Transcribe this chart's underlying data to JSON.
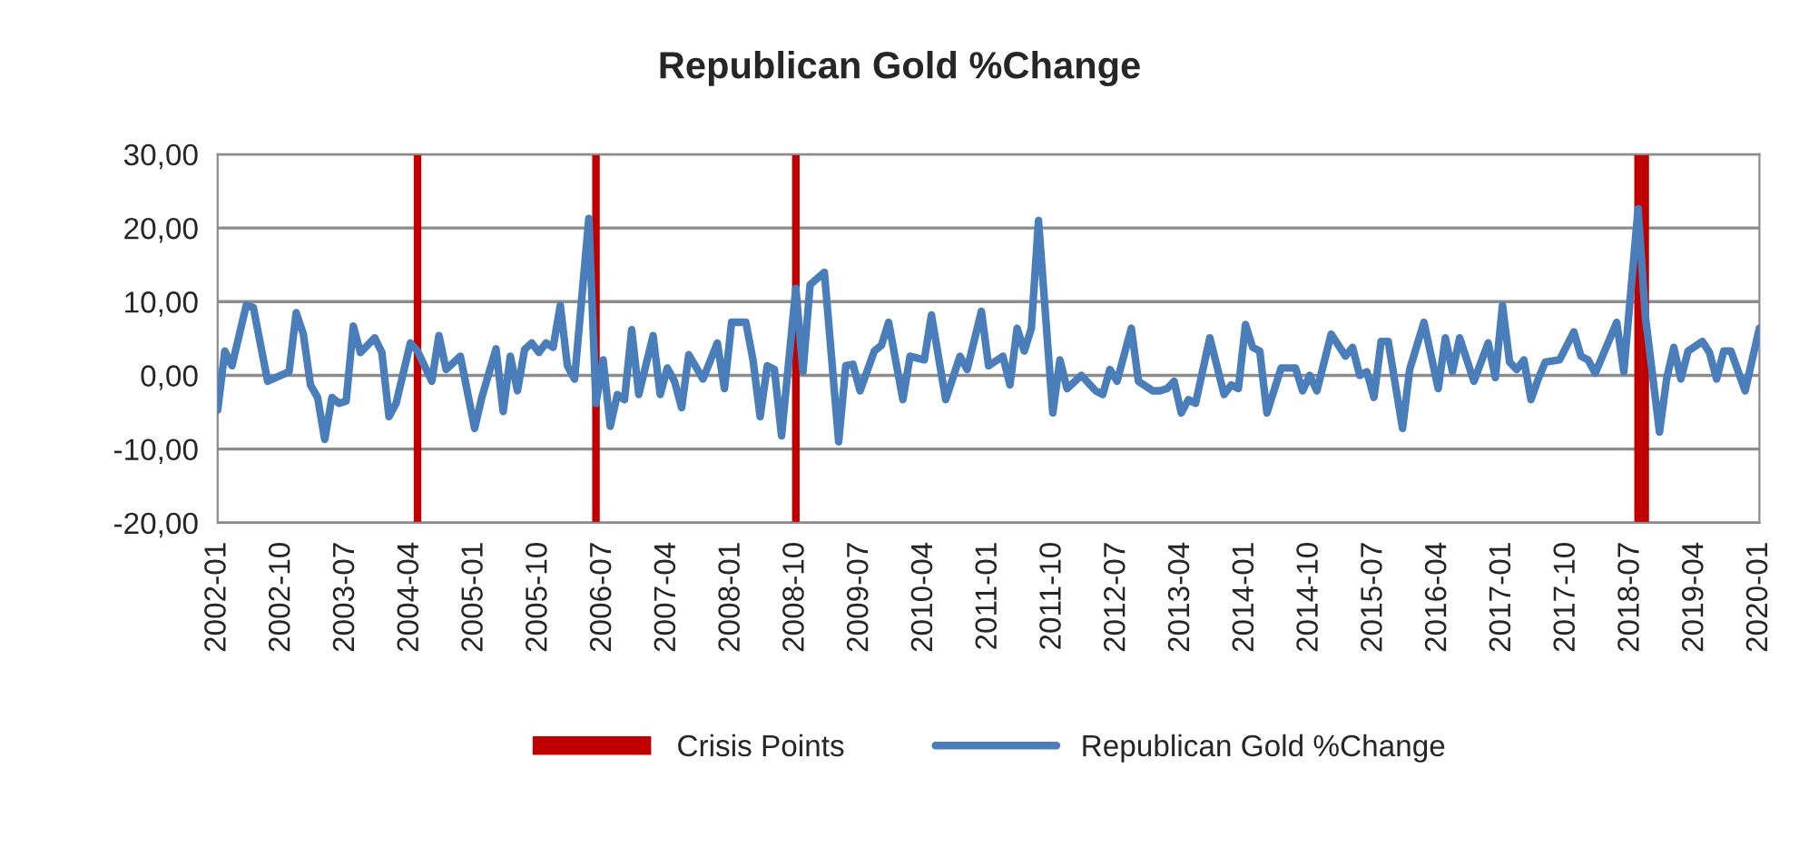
{
  "chart_data": {
    "type": "line",
    "title": "Republican Gold %Change",
    "x": [
      "2002-01",
      "2002-02",
      "2002-03",
      "2002-05",
      "2002-06",
      "2002-08",
      "2002-11",
      "2002-12",
      "2003-01",
      "2003-02",
      "2003-03",
      "2003-04",
      "2003-05",
      "2003-06",
      "2003-07",
      "2003-08",
      "2003-09",
      "2003-11",
      "2003-12",
      "2004-01",
      "2004-02",
      "2004-04",
      "2004-05",
      "2004-07",
      "2004-08",
      "2004-09",
      "2004-11",
      "2005-01",
      "2005-02",
      "2005-04",
      "2005-05",
      "2005-06",
      "2005-07",
      "2005-08",
      "2005-09",
      "2005-10",
      "2005-11",
      "2005-12",
      "2006-01",
      "2006-02",
      "2006-03",
      "2006-05",
      "2006-06",
      "2006-07",
      "2006-08",
      "2006-09",
      "2006-10",
      "2006-11",
      "2006-12",
      "2007-02",
      "2007-03",
      "2007-04",
      "2007-05",
      "2007-06",
      "2007-07",
      "2007-09",
      "2007-11",
      "2007-12",
      "2008-01",
      "2008-03",
      "2008-04",
      "2008-05",
      "2008-06",
      "2008-07",
      "2008-08",
      "2008-10",
      "2008-11",
      "2008-12",
      "2009-02",
      "2009-04",
      "2009-05",
      "2009-06",
      "2009-07",
      "2009-09",
      "2009-10",
      "2009-11",
      "2010-01",
      "2010-02",
      "2010-04",
      "2010-05",
      "2010-07",
      "2010-09",
      "2010-10",
      "2010-12",
      "2011-01",
      "2011-03",
      "2011-04",
      "2011-05",
      "2011-06",
      "2011-07",
      "2011-08",
      "2011-10",
      "2011-11",
      "2011-12",
      "2012-02",
      "2012-04",
      "2012-05",
      "2012-06",
      "2012-07",
      "2012-09",
      "2012-10",
      "2012-12",
      "2013-01",
      "2013-02",
      "2013-03",
      "2013-04",
      "2013-05",
      "2013-06",
      "2013-08",
      "2013-10",
      "2013-11",
      "2013-12",
      "2014-01",
      "2014-02",
      "2014-03",
      "2014-04",
      "2014-06",
      "2014-08",
      "2014-09",
      "2014-10",
      "2014-11",
      "2015-01",
      "2015-03",
      "2015-04",
      "2015-05",
      "2015-06",
      "2015-07",
      "2015-08",
      "2015-09",
      "2015-11",
      "2015-12",
      "2016-02",
      "2016-04",
      "2016-05",
      "2016-06",
      "2016-07",
      "2016-09",
      "2016-11",
      "2016-12",
      "2017-01",
      "2017-02",
      "2017-03",
      "2017-04",
      "2017-05",
      "2017-06",
      "2017-07",
      "2017-09",
      "2017-11",
      "2017-12",
      "2018-01",
      "2018-02",
      "2018-05",
      "2018-06",
      "2018-08",
      "2018-09",
      "2018-11",
      "2018-12",
      "2019-01",
      "2019-02",
      "2019-03",
      "2019-05",
      "2019-06",
      "2019-07",
      "2019-08",
      "2019-09",
      "2019-11",
      "2020-01"
    ],
    "series": [
      {
        "name": "Republican Gold %Change",
        "color": "#4a7ebb",
        "values": [
          -4.7,
          3.3,
          1.3,
          9.5,
          9.2,
          -0.8,
          0.5,
          8.5,
          5.6,
          -1.3,
          -3,
          -8.7,
          -3,
          -3.8,
          -3.5,
          6.7,
          3.1,
          5.1,
          3.1,
          -5.6,
          -3.8,
          4.4,
          3.3,
          -0.8,
          5.4,
          0.8,
          2.6,
          -7.2,
          -3,
          3.6,
          -4.9,
          2.6,
          -2.1,
          3.5,
          4.4,
          3.1,
          4.4,
          3.8,
          9.5,
          1.3,
          -0.5,
          21.3,
          -3.8,
          2.1,
          -6.9,
          -2.6,
          -3.3,
          6.2,
          -2.6,
          5.4,
          -2.6,
          1,
          -0.8,
          -4.4,
          2.8,
          -0.5,
          4.4,
          -1.8,
          7.2,
          7.2,
          2.1,
          -5.6,
          1.3,
          0.8,
          -8.2,
          11.8,
          0.5,
          12.3,
          14,
          -9,
          1.3,
          1.5,
          -2.1,
          3.3,
          4.1,
          7.2,
          -3.3,
          2.6,
          2.1,
          8.2,
          -3.3,
          2.6,
          0.8,
          8.7,
          1.3,
          2.6,
          -1.3,
          6.4,
          3.3,
          6.4,
          21,
          -5.1,
          2.1,
          -1.8,
          0,
          -2.1,
          -2.6,
          0.8,
          -0.8,
          6.4,
          -0.8,
          -2.1,
          -2.1,
          -1.8,
          -0.8,
          -5.1,
          -3.3,
          -3.8,
          5.1,
          -2.6,
          -1.3,
          -1.8,
          6.9,
          3.8,
          3.3,
          -5.1,
          1,
          1,
          -2.1,
          0,
          -2.1,
          5.6,
          2.6,
          3.8,
          0,
          0.5,
          -3,
          4.6,
          4.6,
          -7.2,
          0.8,
          7.2,
          -1.8,
          5.1,
          0.5,
          5.1,
          -0.8,
          4.4,
          -0.3,
          9.5,
          1.8,
          0.8,
          2.1,
          -3.3,
          -0.5,
          1.8,
          2.1,
          5.9,
          2.6,
          2.1,
          0.3,
          7.2,
          0.5,
          22.6,
          8.2,
          -7.7,
          -0.5,
          3.8,
          -0.5,
          3.3,
          4.6,
          3.1,
          -0.5,
          3.3,
          3.3,
          -2.1,
          6.4
        ]
      }
    ],
    "ref_lines": [
      {
        "axis": "x",
        "value": "2004-05",
        "label": "Crisis Points",
        "color": "#c00000"
      },
      {
        "axis": "x",
        "value": "2006-06",
        "color": "#c00000"
      },
      {
        "axis": "x",
        "value": "2008-10",
        "color": "#c00000"
      },
      {
        "axis": "x",
        "value": "2018-08",
        "color": "#c00000"
      },
      {
        "axis": "x",
        "value": "2018-09",
        "color": "#c00000"
      }
    ],
    "xlim": [
      "2002-01",
      "2020-01"
    ],
    "xticks": [
      "2002-01",
      "2002-10",
      "2003-07",
      "2004-04",
      "2005-01",
      "2005-10",
      "2006-07",
      "2007-04",
      "2008-01",
      "2008-10",
      "2009-07",
      "2010-04",
      "2011-01",
      "2011-10",
      "2012-07",
      "2013-04",
      "2014-01",
      "2014-10",
      "2015-07",
      "2016-04",
      "2017-01",
      "2017-10",
      "2018-07",
      "2019-04",
      "2020-01"
    ],
    "ylim": [
      -20,
      30
    ],
    "yticks": [
      {
        "value": -20,
        "label": "-20,00"
      },
      {
        "value": -10,
        "label": "-10,00"
      },
      {
        "value": 0,
        "label": "0,00"
      },
      {
        "value": 10,
        "label": "10,00"
      },
      {
        "value": 20,
        "label": "20,00"
      },
      {
        "value": 30,
        "label": "30,00"
      }
    ],
    "grid": "y",
    "legend": "bottom",
    "marker": "none",
    "line_style": "solid"
  }
}
